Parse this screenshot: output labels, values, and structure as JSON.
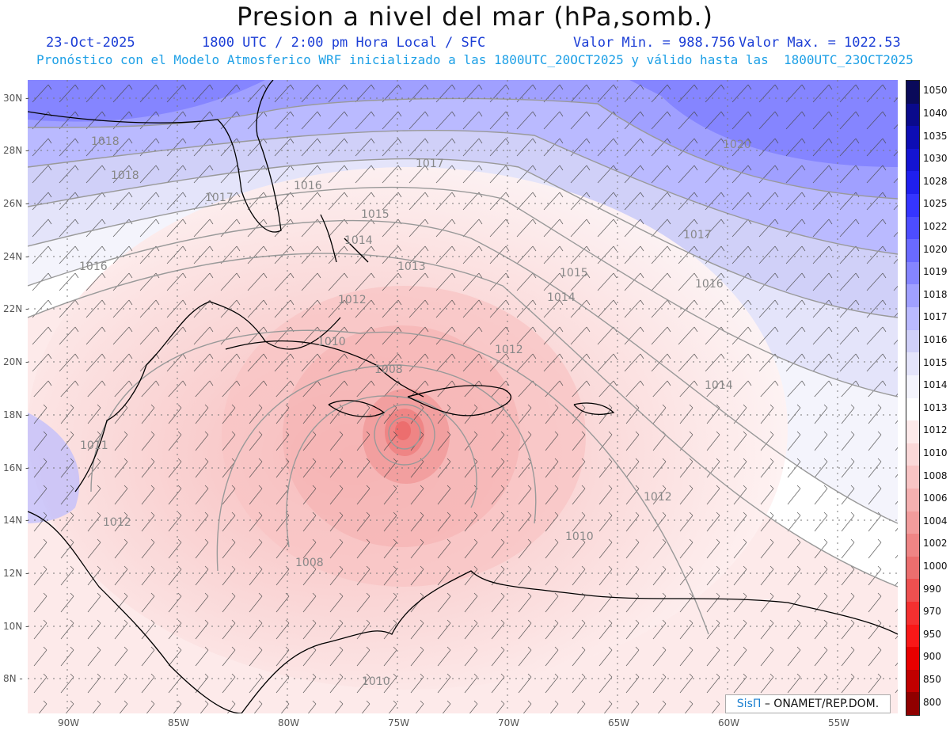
{
  "header": {
    "title": "Presion a nivel del mar (hPa,somb.)",
    "date": "23-Oct-2025",
    "time": "1800 UTC / 2:00 pm Hora Local / SFC",
    "valor_min": "Valor Min. = 988.756",
    "valor_max": "Valor Max. = 1022.53",
    "forecast_line": "Pronóstico con el Modelo Atmosferico WRF inicializado a las 1800UTC_20OCT2025 y válido hasta las  1800UTC_23OCT2025"
  },
  "axes": {
    "lon_labels": [
      "90W",
      "85W",
      "80W",
      "75W",
      "70W",
      "65W",
      "60W",
      "55W"
    ],
    "lat_labels": [
      "30N",
      "28N",
      "26N",
      "24N",
      "22N",
      "20N",
      "18N",
      "16N",
      "14N",
      "12N",
      "10N",
      "8N"
    ]
  },
  "contour_labels": [
    "1018",
    "1018",
    "1017",
    "1017",
    "1016",
    "1015",
    "1014",
    "1013",
    "1012",
    "1016",
    "1020",
    "1017",
    "1016",
    "1015",
    "1014",
    "1012",
    "1014",
    "1010",
    "1008",
    "1012",
    "1012",
    "1010",
    "1008",
    "1011",
    "1010"
  ],
  "colorbar": {
    "levels": [
      "1050",
      "1040",
      "1035",
      "1030",
      "1028",
      "1025",
      "1022",
      "1020",
      "1019",
      "1018",
      "1017",
      "1016",
      "1015",
      "1014",
      "1013",
      "1012",
      "1010",
      "1008",
      "1006",
      "1004",
      "1002",
      "1000",
      "990",
      "970",
      "950",
      "900",
      "850",
      "800"
    ],
    "colors": [
      "#0a0a5a",
      "#0a0a8c",
      "#0d0db4",
      "#1414d2",
      "#1f1fee",
      "#3535ff",
      "#4d4dff",
      "#6a6aff",
      "#8585ff",
      "#a0a0ff",
      "#babaff",
      "#d0d0f8",
      "#e4e4fa",
      "#f4f4fc",
      "#ffffff",
      "#fdeaea",
      "#fad8d8",
      "#f8c4c4",
      "#f5b0b0",
      "#f29c9c",
      "#ef8585",
      "#ec6e6e",
      "#ee5050",
      "#f43030",
      "#f81818",
      "#e80000",
      "#c00000",
      "#900000"
    ]
  },
  "credit": {
    "brand": "SisΠ",
    "text": "– ONAMET/REP.DOM."
  }
}
